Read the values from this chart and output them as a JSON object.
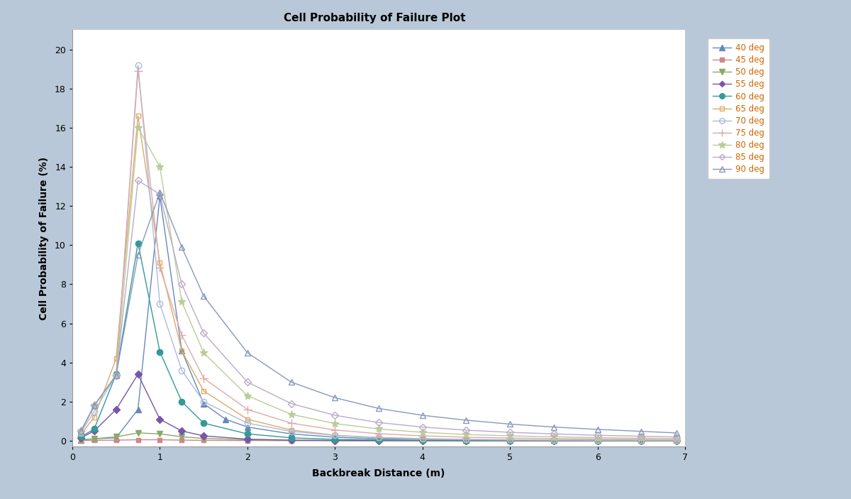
{
  "title": "Cell Probability of Failure Plot",
  "xlabel": "Backbreak Distance (m)",
  "ylabel": "Cell Probability of Failure (%)",
  "background_outer": "#b8c8d8",
  "background_plot": "#ffffff",
  "xlim": [
    0,
    7
  ],
  "ylim": [
    -0.3,
    21
  ],
  "yticks": [
    0,
    2,
    4,
    6,
    8,
    10,
    12,
    14,
    16,
    18,
    20
  ],
  "xticks": [
    0,
    1,
    2,
    3,
    4,
    5,
    6,
    7
  ],
  "series": [
    {
      "label": "40 deg",
      "color": "#6688bb",
      "marker": "^",
      "marker_filled": true,
      "x": [
        0.1,
        0.25,
        0.5,
        0.75,
        1.0,
        1.25,
        1.5,
        1.75,
        2.0,
        2.5,
        3.0,
        3.5,
        4.0,
        4.5,
        5.0,
        5.5,
        6.0,
        6.5,
        6.9
      ],
      "y": [
        0.05,
        0.1,
        0.15,
        1.6,
        12.5,
        4.6,
        1.9,
        1.1,
        0.7,
        0.35,
        0.18,
        0.1,
        0.07,
        0.05,
        0.04,
        0.03,
        0.02,
        0.02,
        0.02
      ]
    },
    {
      "label": "45 deg",
      "color": "#cc8888",
      "marker": "s",
      "marker_filled": true,
      "x": [
        0.1,
        0.25,
        0.5,
        0.75,
        1.0,
        1.25,
        1.5,
        2.0,
        2.5,
        3.0,
        3.5,
        4.0,
        4.5,
        5.0,
        5.5,
        6.0,
        6.5,
        6.9
      ],
      "y": [
        0.01,
        0.02,
        0.03,
        0.05,
        0.05,
        0.03,
        0.02,
        0.01,
        0.005,
        0.003,
        0.002,
        0.001,
        0.001,
        0.001,
        0.001,
        0.001,
        0.001,
        0.001
      ]
    },
    {
      "label": "50 deg",
      "color": "#88aa66",
      "marker": "v",
      "marker_filled": true,
      "x": [
        0.1,
        0.25,
        0.5,
        0.75,
        1.0,
        1.25,
        1.5,
        2.0,
        2.5,
        3.0,
        3.5,
        4.0,
        4.5,
        5.0,
        5.5,
        6.0,
        6.5,
        6.9
      ],
      "y": [
        0.05,
        0.1,
        0.2,
        0.4,
        0.35,
        0.2,
        0.12,
        0.05,
        0.02,
        0.01,
        0.005,
        0.003,
        0.002,
        0.001,
        0.001,
        0.001,
        0.001,
        0.001
      ]
    },
    {
      "label": "55 deg",
      "color": "#7755aa",
      "marker": "D",
      "marker_filled": true,
      "x": [
        0.1,
        0.25,
        0.5,
        0.75,
        1.0,
        1.25,
        1.5,
        2.0,
        2.5,
        3.0,
        3.5,
        4.0,
        4.5,
        5.0,
        5.5,
        6.0,
        6.5,
        6.9
      ],
      "y": [
        0.15,
        0.5,
        1.6,
        3.4,
        1.1,
        0.5,
        0.25,
        0.08,
        0.03,
        0.015,
        0.008,
        0.005,
        0.003,
        0.002,
        0.001,
        0.001,
        0.001,
        0.001
      ]
    },
    {
      "label": "60 deg",
      "color": "#339999",
      "marker": "o",
      "marker_filled": true,
      "x": [
        0.1,
        0.25,
        0.5,
        0.75,
        1.0,
        1.25,
        1.5,
        2.0,
        2.5,
        3.0,
        3.5,
        4.0,
        4.5,
        5.0,
        5.5,
        6.0,
        6.5,
        6.9
      ],
      "y": [
        0.2,
        0.6,
        3.4,
        10.1,
        4.55,
        2.0,
        0.9,
        0.35,
        0.15,
        0.07,
        0.04,
        0.02,
        0.015,
        0.01,
        0.008,
        0.005,
        0.004,
        0.003
      ]
    },
    {
      "label": "65 deg",
      "color": "#ddaa66",
      "marker": "s",
      "marker_filled": false,
      "x": [
        0.1,
        0.25,
        0.5,
        0.75,
        1.0,
        1.25,
        1.5,
        2.0,
        2.5,
        3.0,
        3.5,
        4.0,
        4.5,
        5.0,
        5.5,
        6.0,
        6.5,
        6.9
      ],
      "y": [
        0.35,
        1.2,
        4.2,
        16.6,
        9.1,
        4.6,
        2.55,
        1.1,
        0.55,
        0.28,
        0.15,
        0.09,
        0.055,
        0.035,
        0.025,
        0.018,
        0.014,
        0.011
      ]
    },
    {
      "label": "70 deg",
      "color": "#aabbdd",
      "marker": "o",
      "marker_filled": false,
      "x": [
        0.1,
        0.25,
        0.5,
        0.75,
        1.0,
        1.25,
        1.5,
        2.0,
        2.5,
        3.0,
        3.5,
        4.0,
        4.5,
        5.0,
        5.5,
        6.0,
        6.5,
        6.9
      ],
      "y": [
        0.45,
        1.5,
        3.35,
        19.2,
        7.0,
        3.6,
        2.0,
        0.9,
        0.48,
        0.27,
        0.17,
        0.11,
        0.075,
        0.055,
        0.042,
        0.033,
        0.026,
        0.021
      ]
    },
    {
      "label": "75 deg",
      "color": "#ddaaaa",
      "marker": "+",
      "marker_filled": true,
      "x": [
        0.1,
        0.25,
        0.5,
        0.75,
        1.0,
        1.25,
        1.5,
        2.0,
        2.5,
        3.0,
        3.5,
        4.0,
        4.5,
        5.0,
        5.5,
        6.0,
        6.5,
        6.9
      ],
      "y": [
        0.5,
        1.8,
        3.35,
        18.9,
        8.85,
        5.4,
        3.2,
        1.6,
        0.9,
        0.55,
        0.36,
        0.25,
        0.18,
        0.14,
        0.11,
        0.09,
        0.073,
        0.06
      ]
    },
    {
      "label": "80 deg",
      "color": "#bbcc99",
      "marker": "*",
      "marker_filled": true,
      "x": [
        0.1,
        0.25,
        0.5,
        0.75,
        1.0,
        1.25,
        1.5,
        2.0,
        2.5,
        3.0,
        3.5,
        4.0,
        4.5,
        5.0,
        5.5,
        6.0,
        6.5,
        6.9
      ],
      "y": [
        0.5,
        1.8,
        3.35,
        16.0,
        14.0,
        7.1,
        4.5,
        2.3,
        1.35,
        0.88,
        0.6,
        0.43,
        0.32,
        0.25,
        0.2,
        0.16,
        0.13,
        0.11
      ]
    },
    {
      "label": "85 deg",
      "color": "#bbaacc",
      "marker": "D",
      "marker_filled": false,
      "x": [
        0.1,
        0.25,
        0.5,
        0.75,
        1.0,
        1.25,
        1.5,
        2.0,
        2.5,
        3.0,
        3.5,
        4.0,
        4.5,
        5.0,
        5.5,
        6.0,
        6.5,
        6.9
      ],
      "y": [
        0.5,
        1.8,
        3.35,
        13.3,
        12.6,
        8.0,
        5.5,
        3.0,
        1.9,
        1.3,
        0.93,
        0.7,
        0.54,
        0.43,
        0.35,
        0.28,
        0.23,
        0.19
      ]
    },
    {
      "label": "90 deg",
      "color": "#8899bb",
      "marker": "^",
      "marker_filled": false,
      "x": [
        0.1,
        0.25,
        0.5,
        0.75,
        1.0,
        1.25,
        1.5,
        2.0,
        2.5,
        3.0,
        3.5,
        4.0,
        4.5,
        5.0,
        5.5,
        6.0,
        6.5,
        6.9
      ],
      "y": [
        0.5,
        1.8,
        3.35,
        9.5,
        12.7,
        9.9,
        7.4,
        4.5,
        3.0,
        2.2,
        1.65,
        1.3,
        1.05,
        0.85,
        0.7,
        0.58,
        0.48,
        0.4
      ]
    }
  ]
}
